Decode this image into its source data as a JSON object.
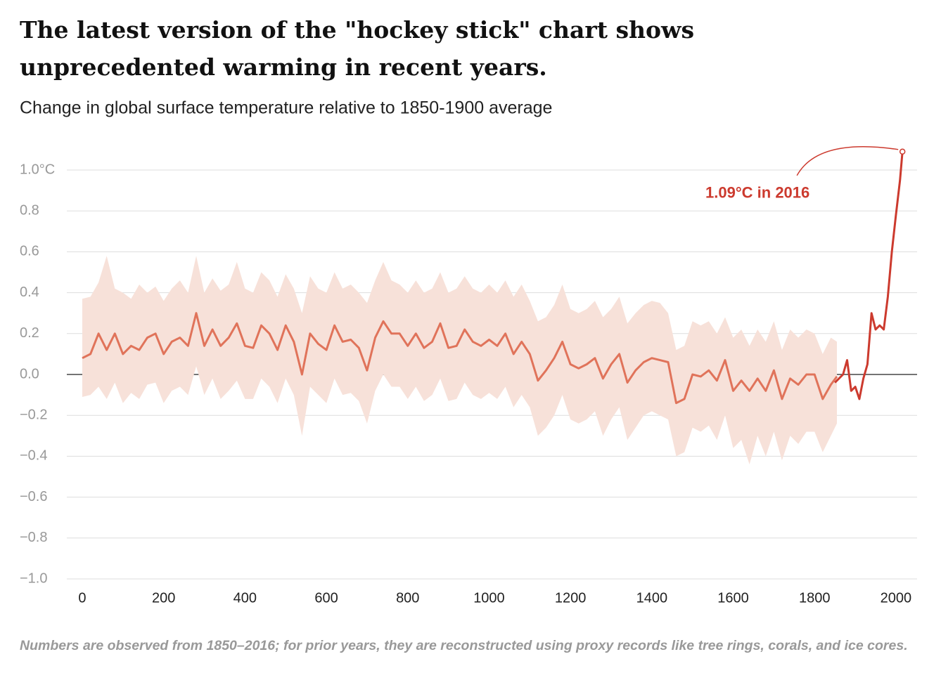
{
  "chart_data": {
    "type": "line",
    "title": "The latest version of the \"hockey stick\" chart shows unprecedented warming in recent years.",
    "subtitle": "Change in global surface temperature relative to 1850-1900 average",
    "footnote": "Numbers are observed from 1850–2016; for prior years, they are reconstructed using proxy records like tree rings, corals, and ice cores.",
    "annotation": "1.09°C in 2016",
    "xlim": [
      -38,
      2052
    ],
    "ylim": [
      -1.0,
      1.0
    ],
    "xticks": [
      0,
      200,
      400,
      600,
      800,
      1000,
      1200,
      1400,
      1600,
      1800,
      2000
    ],
    "yticks": [
      {
        "value": 1.0,
        "label": "1.0°C"
      },
      0.8,
      0.6,
      0.4,
      0.2,
      {
        "value": 0,
        "label": "0.0"
      },
      {
        "value": -0.2,
        "label": "−0.2"
      },
      {
        "value": -0.4,
        "label": "−0.4"
      },
      {
        "value": -0.6,
        "label": "−0.6"
      },
      {
        "value": -0.8,
        "label": "−0.8"
      },
      {
        "value": -1.0,
        "label": "−1.0"
      }
    ],
    "grid": true,
    "reconstruction": {
      "color": "#e0735a",
      "band_color": "#f7e1d9",
      "x": [
        0,
        20,
        40,
        60,
        80,
        100,
        120,
        140,
        160,
        180,
        200,
        220,
        240,
        260,
        280,
        300,
        320,
        340,
        360,
        380,
        400,
        420,
        440,
        460,
        480,
        500,
        520,
        540,
        560,
        580,
        600,
        620,
        640,
        660,
        680,
        700,
        720,
        740,
        760,
        780,
        800,
        820,
        840,
        860,
        880,
        900,
        920,
        940,
        960,
        980,
        1000,
        1020,
        1040,
        1060,
        1080,
        1100,
        1120,
        1140,
        1160,
        1180,
        1200,
        1220,
        1240,
        1260,
        1280,
        1300,
        1320,
        1340,
        1360,
        1380,
        1400,
        1420,
        1440,
        1460,
        1480,
        1500,
        1520,
        1540,
        1560,
        1580,
        1600,
        1620,
        1640,
        1660,
        1680,
        1700,
        1720,
        1740,
        1760,
        1780,
        1800,
        1820,
        1840,
        1855
      ],
      "values": [
        0.08,
        0.1,
        0.2,
        0.12,
        0.2,
        0.1,
        0.14,
        0.12,
        0.18,
        0.2,
        0.1,
        0.16,
        0.18,
        0.14,
        0.3,
        0.14,
        0.22,
        0.14,
        0.18,
        0.25,
        0.14,
        0.13,
        0.24,
        0.2,
        0.12,
        0.24,
        0.16,
        0.0,
        0.2,
        0.15,
        0.12,
        0.24,
        0.16,
        0.17,
        0.13,
        0.02,
        0.18,
        0.26,
        0.2,
        0.2,
        0.14,
        0.2,
        0.13,
        0.16,
        0.25,
        0.13,
        0.14,
        0.22,
        0.16,
        0.14,
        0.17,
        0.14,
        0.2,
        0.1,
        0.16,
        0.1,
        -0.03,
        0.02,
        0.08,
        0.16,
        0.05,
        0.03,
        0.05,
        0.08,
        -0.02,
        0.05,
        0.1,
        -0.04,
        0.02,
        0.06,
        0.08,
        0.07,
        0.06,
        -0.14,
        -0.12,
        0.0,
        -0.01,
        0.02,
        -0.03,
        0.07,
        -0.08,
        -0.03,
        -0.08,
        -0.02,
        -0.08,
        0.02,
        -0.12,
        -0.02,
        -0.05,
        0.0,
        0.0,
        -0.12,
        -0.05,
        -0.01
      ],
      "upper": [
        0.37,
        0.38,
        0.45,
        0.58,
        0.42,
        0.4,
        0.37,
        0.44,
        0.4,
        0.43,
        0.36,
        0.42,
        0.46,
        0.4,
        0.58,
        0.4,
        0.47,
        0.41,
        0.44,
        0.55,
        0.42,
        0.4,
        0.5,
        0.46,
        0.38,
        0.49,
        0.42,
        0.3,
        0.48,
        0.42,
        0.4,
        0.5,
        0.42,
        0.44,
        0.4,
        0.35,
        0.46,
        0.55,
        0.46,
        0.44,
        0.4,
        0.46,
        0.4,
        0.42,
        0.5,
        0.4,
        0.42,
        0.48,
        0.42,
        0.4,
        0.44,
        0.4,
        0.46,
        0.38,
        0.44,
        0.36,
        0.26,
        0.28,
        0.34,
        0.44,
        0.32,
        0.3,
        0.32,
        0.36,
        0.28,
        0.32,
        0.38,
        0.25,
        0.3,
        0.34,
        0.36,
        0.35,
        0.3,
        0.12,
        0.14,
        0.26,
        0.24,
        0.26,
        0.2,
        0.28,
        0.18,
        0.22,
        0.14,
        0.22,
        0.16,
        0.26,
        0.12,
        0.22,
        0.18,
        0.22,
        0.2,
        0.1,
        0.18,
        0.16
      ],
      "lower": [
        -0.11,
        -0.1,
        -0.06,
        -0.12,
        -0.04,
        -0.14,
        -0.09,
        -0.12,
        -0.05,
        -0.04,
        -0.14,
        -0.08,
        -0.06,
        -0.1,
        0.04,
        -0.1,
        -0.02,
        -0.12,
        -0.08,
        -0.03,
        -0.12,
        -0.12,
        -0.02,
        -0.06,
        -0.14,
        -0.02,
        -0.1,
        -0.3,
        -0.06,
        -0.1,
        -0.14,
        -0.02,
        -0.1,
        -0.09,
        -0.13,
        -0.24,
        -0.08,
        0.0,
        -0.06,
        -0.06,
        -0.12,
        -0.06,
        -0.13,
        -0.1,
        -0.02,
        -0.13,
        -0.12,
        -0.04,
        -0.1,
        -0.12,
        -0.09,
        -0.12,
        -0.06,
        -0.16,
        -0.1,
        -0.16,
        -0.3,
        -0.26,
        -0.2,
        -0.1,
        -0.22,
        -0.24,
        -0.22,
        -0.18,
        -0.3,
        -0.22,
        -0.16,
        -0.32,
        -0.26,
        -0.2,
        -0.18,
        -0.2,
        -0.22,
        -0.4,
        -0.38,
        -0.26,
        -0.28,
        -0.25,
        -0.32,
        -0.2,
        -0.36,
        -0.32,
        -0.44,
        -0.3,
        -0.4,
        -0.28,
        -0.42,
        -0.3,
        -0.34,
        -0.28,
        -0.28,
        -0.38,
        -0.3,
        -0.24
      ]
    },
    "observed": {
      "color": "#cc3a2e",
      "x": [
        1850,
        1860,
        1870,
        1880,
        1890,
        1900,
        1910,
        1920,
        1930,
        1940,
        1950,
        1960,
        1970,
        1980,
        1990,
        2000,
        2010,
        2016
      ],
      "values": [
        -0.04,
        -0.02,
        0.0,
        0.07,
        -0.08,
        -0.06,
        -0.12,
        -0.02,
        0.05,
        0.3,
        0.22,
        0.24,
        0.22,
        0.38,
        0.6,
        0.78,
        0.95,
        1.09
      ]
    }
  }
}
